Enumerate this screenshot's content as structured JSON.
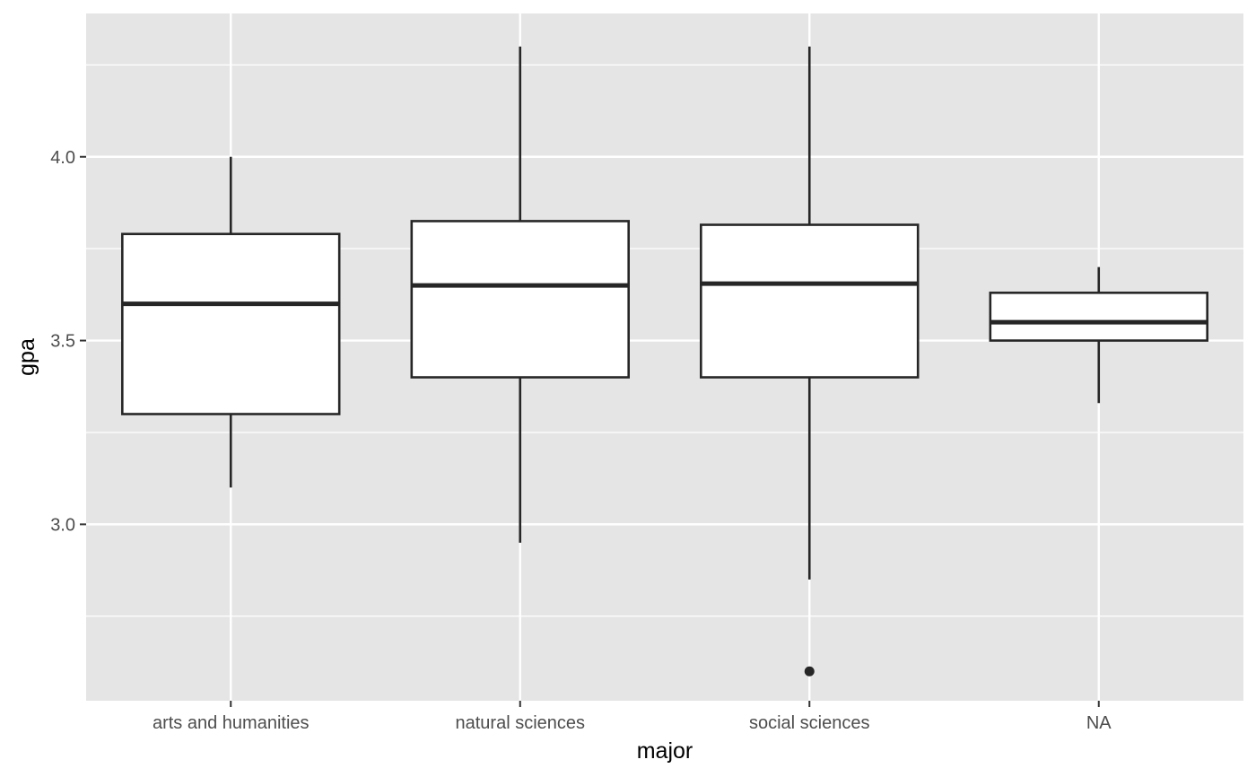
{
  "chart_data": {
    "type": "boxplot",
    "xlabel": "major",
    "ylabel": "gpa",
    "categories": [
      "arts and humanities",
      "natural sciences",
      "social sciences",
      "NA"
    ],
    "ylim": [
      2.52,
      4.39
    ],
    "y_ticks": [
      3.0,
      3.5,
      4.0
    ],
    "y_tick_labels": [
      "3.0",
      "3.5",
      "4.0"
    ],
    "y_minor_ticks": [
      2.75,
      3.25,
      3.75,
      4.25
    ],
    "grid": true,
    "boxes": [
      {
        "category": "arts and humanities",
        "whisker_low": 3.1,
        "q1": 3.3,
        "median": 3.6,
        "q3": 3.79,
        "whisker_high": 4.0,
        "outliers": []
      },
      {
        "category": "natural sciences",
        "whisker_low": 2.95,
        "q1": 3.4,
        "median": 3.65,
        "q3": 3.825,
        "whisker_high": 4.3,
        "outliers": []
      },
      {
        "category": "social sciences",
        "whisker_low": 2.85,
        "q1": 3.4,
        "median": 3.655,
        "q3": 3.815,
        "whisker_high": 4.3,
        "outliers": [
          2.6
        ]
      },
      {
        "category": "NA",
        "whisker_low": 3.33,
        "q1": 3.5,
        "median": 3.55,
        "q3": 3.63,
        "whisker_high": 3.7,
        "outliers": []
      }
    ],
    "colors": {
      "panel": "#e5e5e5",
      "grid": "#ffffff",
      "box_fill": "#ffffff",
      "box_line": "#262626"
    }
  }
}
